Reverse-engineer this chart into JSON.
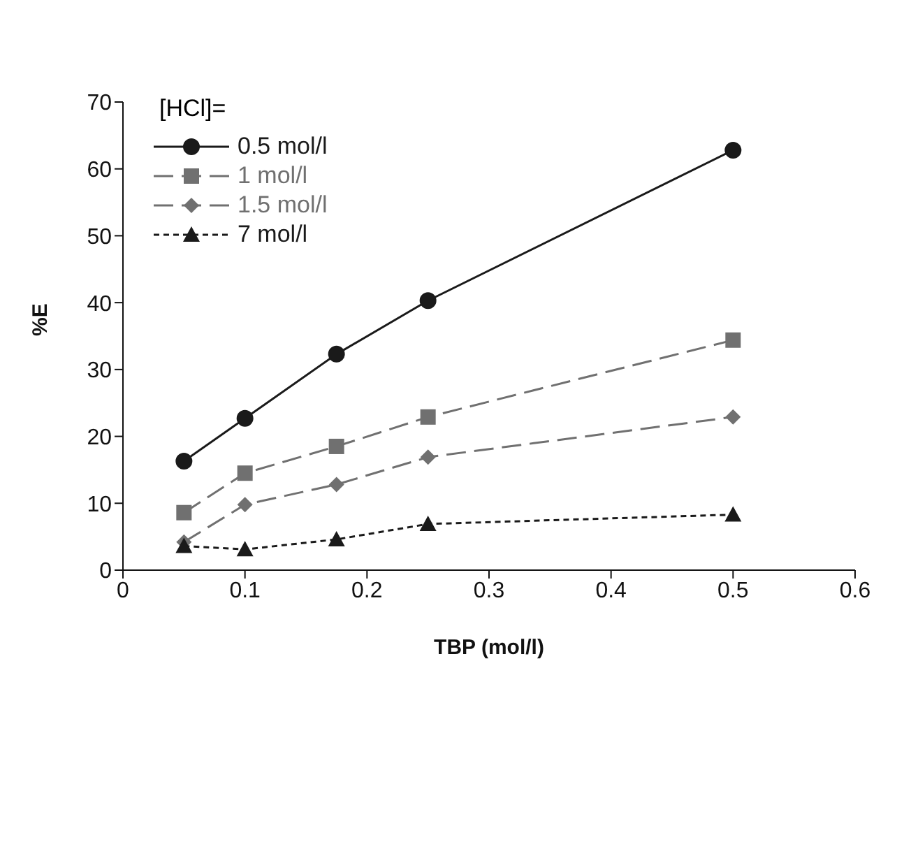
{
  "chart_data": {
    "type": "line",
    "xlabel": "TBP (mol/l)",
    "ylabel": "%E",
    "legend_title": "[HCl]=",
    "x": [
      0.05,
      0.1,
      0.175,
      0.25,
      0.5
    ],
    "series": [
      {
        "name": "0.5 mol/l",
        "color": "#1a1a1a",
        "values": [
          16.3,
          22.7,
          32.3,
          40.3,
          62.8
        ],
        "marker": "circle",
        "line_style": "solid"
      },
      {
        "name": "1 mol/l",
        "color": "#707070",
        "values": [
          8.6,
          14.5,
          18.5,
          22.9,
          34.4
        ],
        "marker": "square",
        "line_style": "dashed"
      },
      {
        "name": "1.5 mol/l",
        "color": "#707070",
        "values": [
          4.2,
          9.8,
          12.8,
          16.9,
          22.9
        ],
        "marker": "diamond",
        "line_style": "dashed"
      },
      {
        "name": "7 mol/l",
        "color": "#1a1a1a",
        "values": [
          3.6,
          3.1,
          4.6,
          6.9,
          8.3
        ],
        "marker": "triangle",
        "line_style": "dotted"
      }
    ],
    "xlim": [
      0,
      0.6
    ],
    "xticks": [
      0,
      0.1,
      0.2,
      0.3,
      0.4,
      0.5,
      0.6
    ],
    "ylim": [
      0,
      70
    ],
    "yticks": [
      0,
      10,
      20,
      30,
      40,
      50,
      60,
      70
    ],
    "grid": false,
    "legend": "top left"
  }
}
